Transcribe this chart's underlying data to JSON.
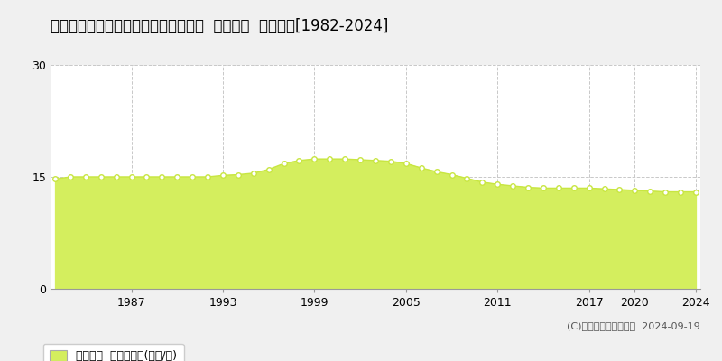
{
  "title": "青森県八戸市大字湊町字赤坂１６番７  基準地価  地価推移[1982-2024]",
  "years": [
    1982,
    1983,
    1984,
    1985,
    1986,
    1987,
    1988,
    1989,
    1990,
    1991,
    1992,
    1993,
    1994,
    1995,
    1996,
    1997,
    1998,
    1999,
    2000,
    2001,
    2002,
    2003,
    2004,
    2005,
    2006,
    2007,
    2008,
    2009,
    2010,
    2011,
    2012,
    2013,
    2014,
    2015,
    2016,
    2017,
    2018,
    2019,
    2020,
    2021,
    2022,
    2023,
    2024
  ],
  "values": [
    14.7,
    15.0,
    15.0,
    15.0,
    15.0,
    15.0,
    15.0,
    15.0,
    15.0,
    15.0,
    15.0,
    15.2,
    15.3,
    15.5,
    16.0,
    16.8,
    17.2,
    17.4,
    17.4,
    17.4,
    17.3,
    17.2,
    17.1,
    16.8,
    16.2,
    15.7,
    15.3,
    14.8,
    14.3,
    14.0,
    13.8,
    13.6,
    13.5,
    13.5,
    13.5,
    13.5,
    13.4,
    13.3,
    13.2,
    13.1,
    13.0,
    13.0,
    13.0
  ],
  "line_color": "#c8e641",
  "fill_color": "#d4ee5e",
  "marker_color": "#c8e641",
  "bg_color": "#f0f0f0",
  "plot_bg_color": "#ffffff",
  "grid_color": "#c8c8c8",
  "ylim": [
    0,
    30
  ],
  "yticks": [
    0,
    15,
    30
  ],
  "xlabel_ticks": [
    1987,
    1993,
    1999,
    2005,
    2011,
    2017,
    2020,
    2024
  ],
  "legend_label": "基準地価  平均坪単価(万円/坪)",
  "copyright_text": "(C)土地価格ドットコム  2024-09-19",
  "title_fontsize": 12,
  "tick_fontsize": 9,
  "legend_fontsize": 9
}
